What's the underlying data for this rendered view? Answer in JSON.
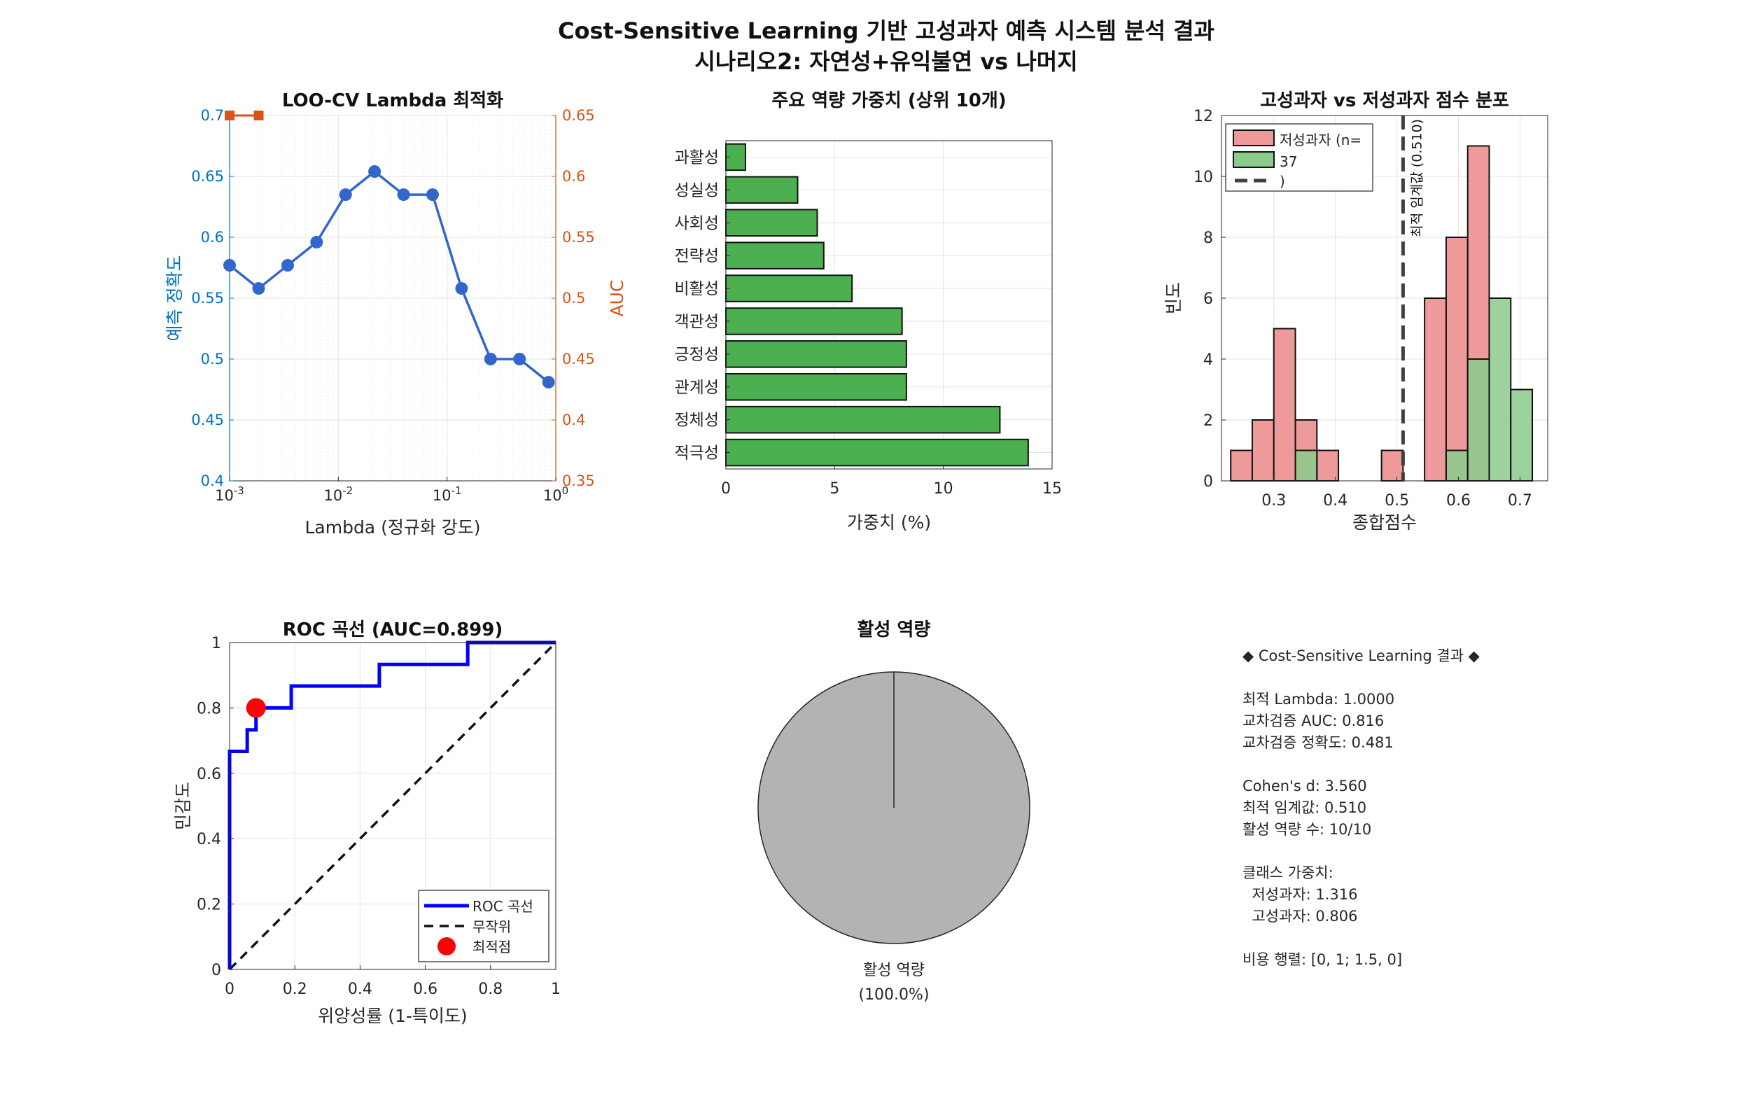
{
  "figure": {
    "title_line1": "Cost-Sensitive Learning 기반 고성과자 예측 시스템 분석 결과",
    "title_line2": "시나리오2: 자연성+유익불연 vs 나머지"
  },
  "colors": {
    "blue_axis": "#0072BD",
    "orange_axis": "#D95319",
    "line_blue": "#3366CC",
    "bar_green": "#4CAF50",
    "hist_red": "#EF9A9A",
    "hist_green": "#8BCB8B",
    "roc_blue": "#0000FF",
    "opt_red": "#FF0000",
    "pie_gray": "#B3B3B3"
  },
  "chart_data": [
    {
      "id": "lambda",
      "type": "line",
      "title": "LOO-CV Lambda 최적화",
      "xlabel": "Lambda (정규화 강도)",
      "ylabel": "예측 정확도",
      "ylabel_right": "AUC",
      "xscale": "log",
      "xlim": [
        0.001,
        1
      ],
      "xticks": [
        {
          "v": 0.001,
          "base": "10",
          "exp": "-3"
        },
        {
          "v": 0.01,
          "base": "10",
          "exp": "-2"
        },
        {
          "v": 0.1,
          "base": "10",
          "exp": "-1"
        },
        {
          "v": 1,
          "base": "10",
          "exp": "0"
        }
      ],
      "ylim": [
        0.4,
        0.7
      ],
      "yticks": [
        "0.4",
        "0.45",
        "0.5",
        "0.55",
        "0.6",
        "0.65",
        "0.7"
      ],
      "ylim_right": [
        0.35,
        0.65
      ],
      "yticks_right": [
        "0.35",
        "0.4",
        "0.45",
        "0.5",
        "0.55",
        "0.6",
        "0.65"
      ],
      "grid": true,
      "series": [
        {
          "axis": "left",
          "x": [
            0.001,
            0.00185,
            0.00342,
            0.00631,
            0.01166,
            0.02154,
            0.03981,
            0.07356,
            0.13594,
            0.25119,
            0.46416,
            0.85769
          ],
          "y": [
            0.577,
            0.558,
            0.577,
            0.596,
            0.635,
            0.654,
            0.635,
            0.635,
            0.558,
            0.5,
            0.5,
            0.481
          ]
        },
        {
          "axis": "right",
          "x": [
            0.001,
            0.00185
          ],
          "y": [
            0.65,
            0.65
          ]
        }
      ]
    },
    {
      "id": "weights",
      "type": "bar",
      "orientation": "horizontal",
      "title": "주요 역량 가중치 (상위 10개)",
      "xlabel": "가중치 (%)",
      "xlim": [
        0,
        15
      ],
      "xticks": [
        "0",
        "5",
        "10",
        "15"
      ],
      "categories": [
        "과활성",
        "성실성",
        "사회성",
        "전략성",
        "비활성",
        "객관성",
        "긍정성",
        "관계성",
        "정체성",
        "적극성"
      ],
      "values": [
        0.9,
        3.3,
        4.2,
        4.5,
        5.8,
        8.1,
        8.3,
        8.3,
        12.6,
        13.9
      ],
      "grid": true
    },
    {
      "id": "hist",
      "type": "bar",
      "title": "고성과자 vs 저성과자 점수 분포",
      "xlabel": "종합점수",
      "ylabel": "빈도",
      "xlim": [
        0.215,
        0.745
      ],
      "xticks": [
        "0.3",
        "0.4",
        "0.5",
        "0.6",
        "0.7"
      ],
      "ylim": [
        0,
        12
      ],
      "yticks": [
        "0",
        "2",
        "4",
        "6",
        "8",
        "10",
        "12"
      ],
      "bin_edges": [
        0.23,
        0.265,
        0.3,
        0.335,
        0.37,
        0.405,
        0.44,
        0.475,
        0.51,
        0.545,
        0.58,
        0.615,
        0.65,
        0.685,
        0.72
      ],
      "series": [
        {
          "name": "저성과자 (n=",
          "counts": [
            1,
            2,
            5,
            2,
            1,
            0,
            0,
            1,
            0,
            6,
            8,
            11,
            0,
            0
          ]
        },
        {
          "name": "37",
          "counts": [
            0,
            0,
            0,
            1,
            0,
            0,
            0,
            0,
            0,
            0,
            1,
            4,
            6,
            3
          ]
        }
      ],
      "threshold": 0.51,
      "threshold_label": "최적 임계값 (0.510)",
      "legend_threshold": ")",
      "legend_position": "top-left",
      "grid": true
    },
    {
      "id": "roc",
      "type": "line",
      "title": "ROC 곡선 (AUC=0.899)",
      "xlabel": "위양성률 (1-특이도)",
      "ylabel": "민감도",
      "xlim": [
        0,
        1
      ],
      "ylim": [
        0,
        1
      ],
      "xticks": [
        "0",
        "0.2",
        "0.4",
        "0.6",
        "0.8",
        "1"
      ],
      "yticks": [
        "0",
        "0.2",
        "0.4",
        "0.6",
        "0.8",
        "1"
      ],
      "series": [
        {
          "name": "ROC 곡선",
          "x": [
            0,
            0,
            0.054,
            0.054,
            0.081,
            0.081,
            0.189,
            0.189,
            0.459,
            0.459,
            0.73,
            0.73,
            1
          ],
          "y": [
            0,
            0.667,
            0.667,
            0.733,
            0.733,
            0.8,
            0.8,
            0.867,
            0.867,
            0.933,
            0.933,
            1,
            1
          ]
        },
        {
          "name": "무작위",
          "x": [
            0,
            1
          ],
          "y": [
            0,
            1
          ]
        },
        {
          "name": "최적점",
          "x": [
            0.081
          ],
          "y": [
            0.8
          ]
        }
      ],
      "legend_position": "bottom-right",
      "grid": true
    },
    {
      "id": "pie",
      "type": "pie",
      "title": "활성 역량",
      "slices": [
        {
          "label": "활성 역량",
          "pct_label": "(100.0%)",
          "value": 100
        }
      ]
    }
  ],
  "summary": {
    "lines": [
      "◆ Cost-Sensitive Learning 결과 ◆",
      "",
      "최적 Lambda: 1.0000",
      "교차검증 AUC: 0.816",
      "교차검증 정확도: 0.481",
      "",
      "Cohen's d: 3.560",
      "최적 임계값: 0.510",
      "활성 역량 수: 10/10",
      "",
      "클래스 가중치:",
      "  저성과자: 1.316",
      "  고성과자: 0.806",
      "",
      "비용 행렬: [0, 1; 1.5, 0]"
    ]
  }
}
